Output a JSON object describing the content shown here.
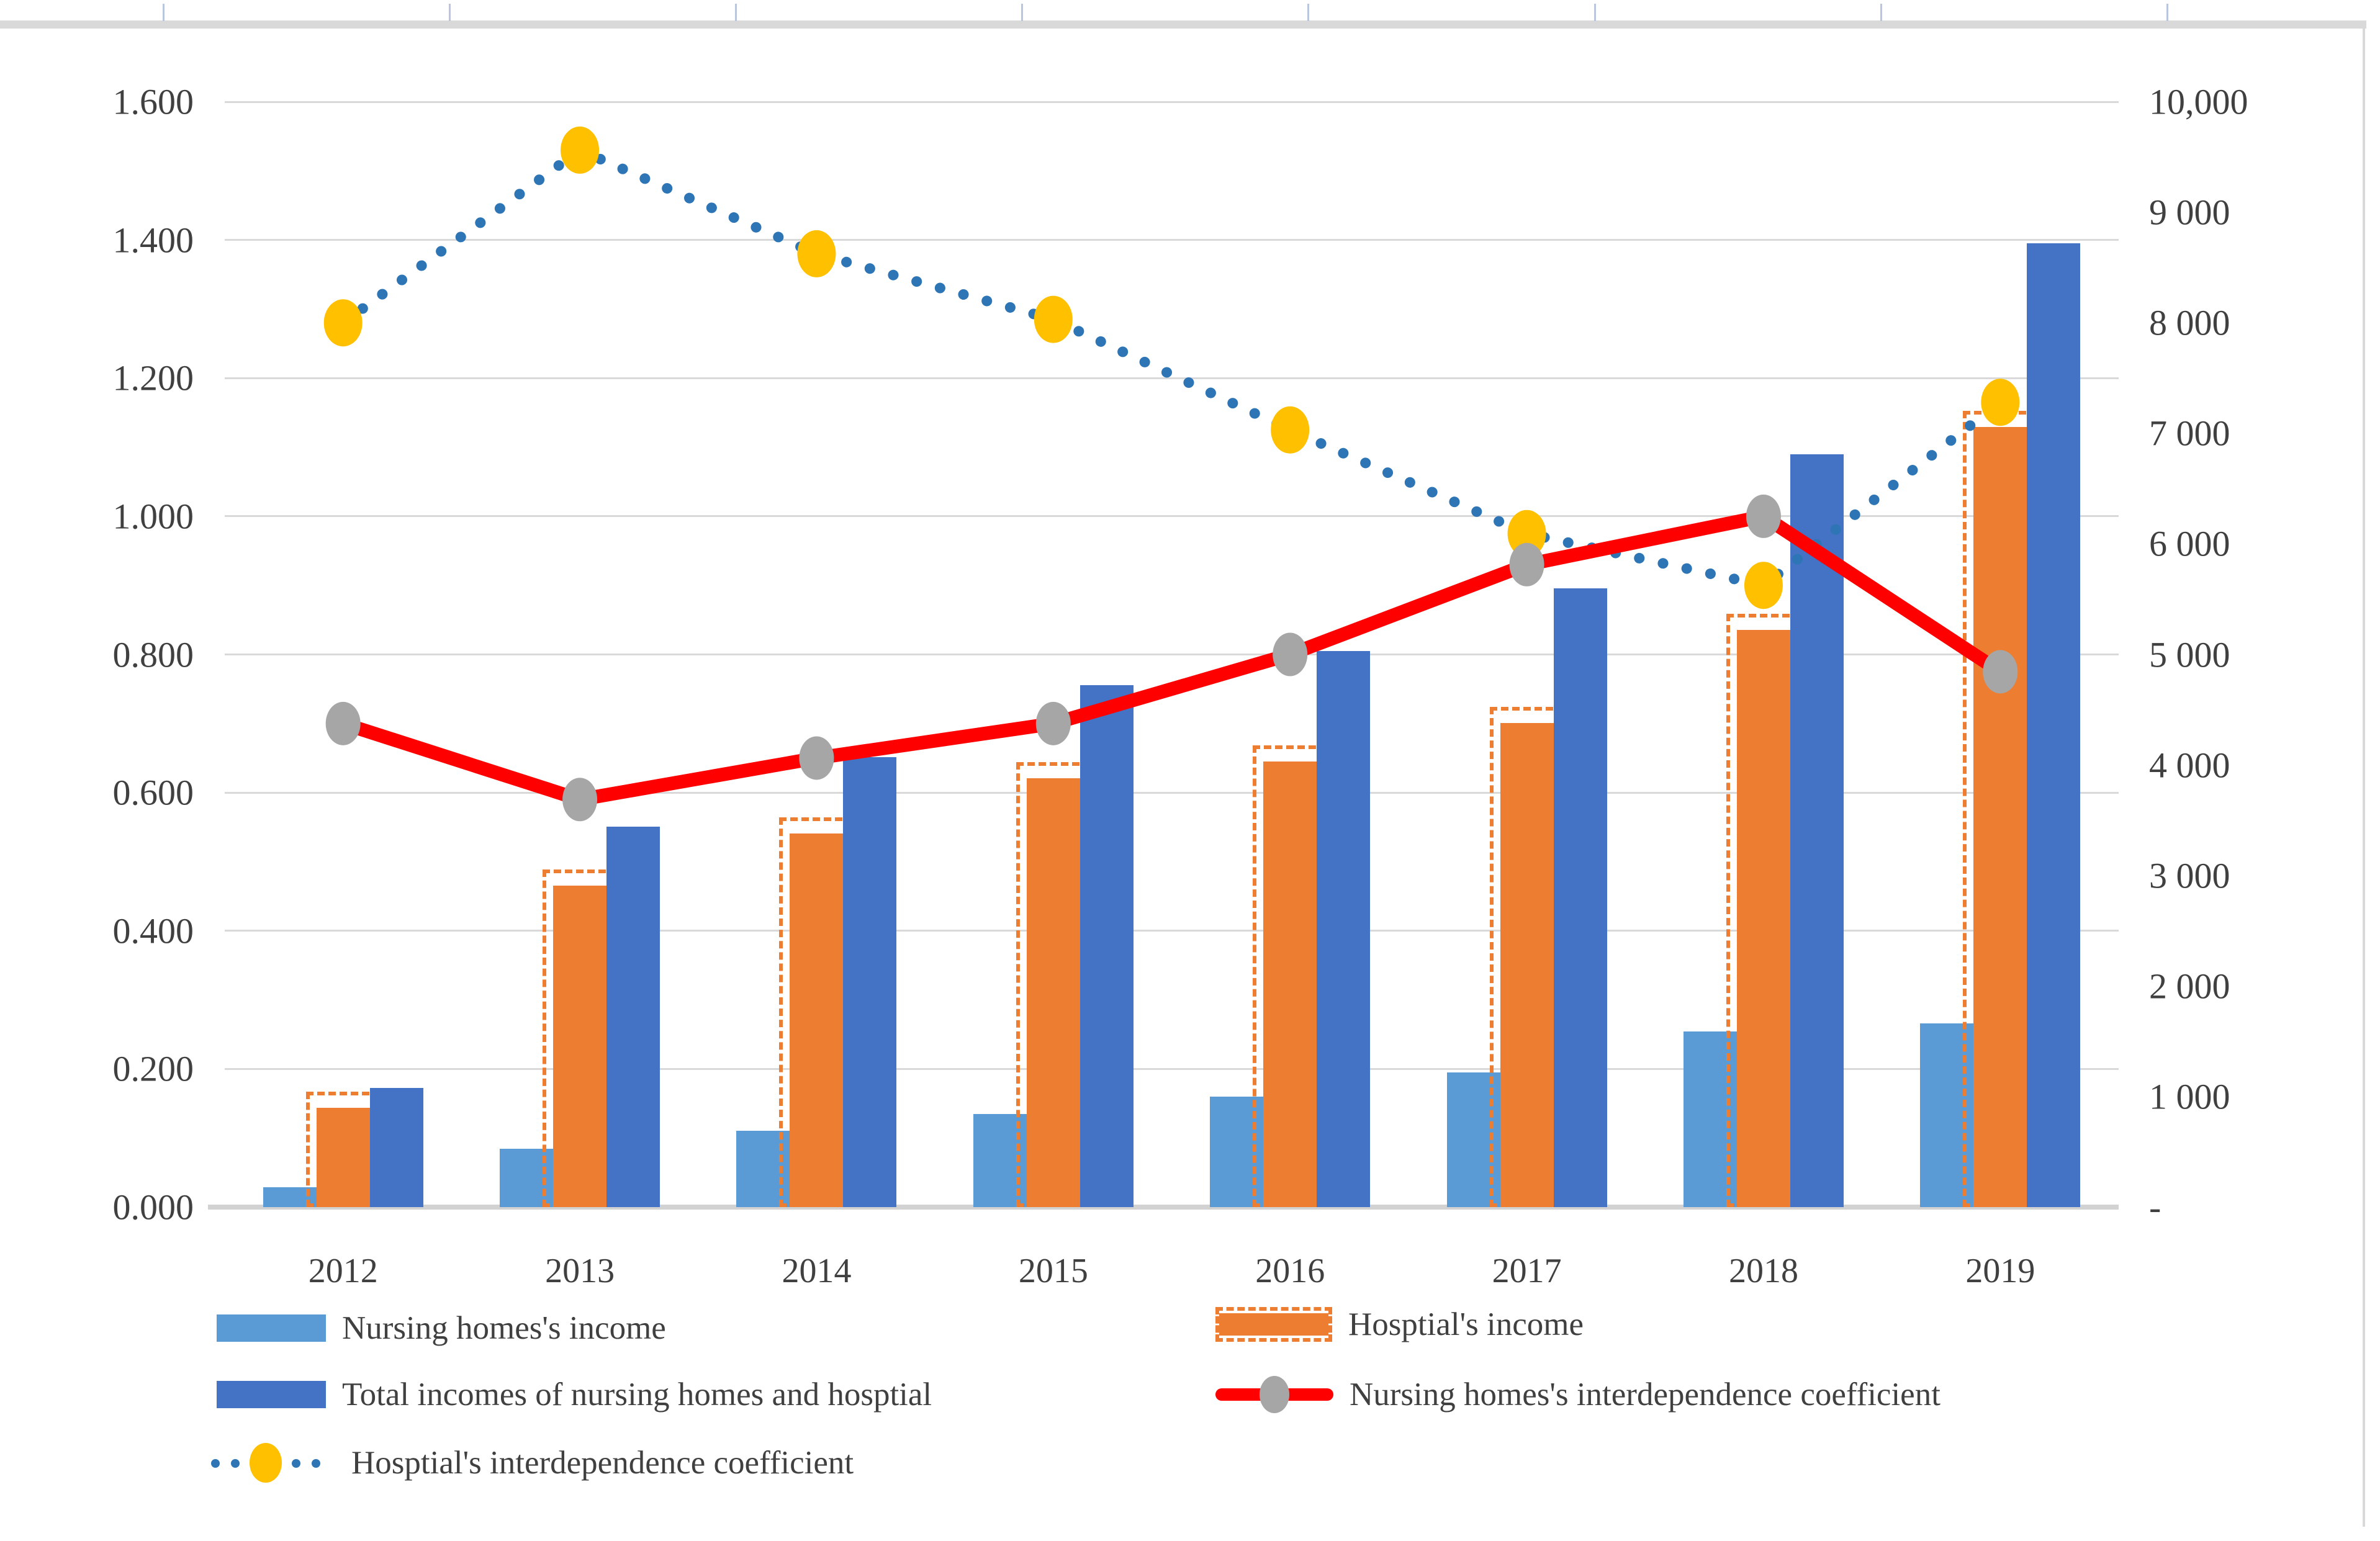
{
  "chart_data": {
    "type": "bar",
    "subtype": "combo-bar-line-dual-axis",
    "title": "",
    "xlabel": "",
    "ylabel": "",
    "categories": [
      "2012",
      "2013",
      "2014",
      "2015",
      "2016",
      "2017",
      "2018",
      "2019"
    ],
    "series": [
      {
        "name": "Nursing homes's income",
        "type": "bar",
        "axis": "right",
        "color": "#5B9BD5",
        "values": [
          180,
          530,
          690,
          840,
          1000,
          1220,
          1590,
          1660
        ]
      },
      {
        "name": "Hosptial's income",
        "type": "bar",
        "axis": "right",
        "color": "#ED7D31",
        "outline": "dashed",
        "values": [
          900,
          2910,
          3380,
          3880,
          4030,
          4380,
          5220,
          7060
        ]
      },
      {
        "name": "Total incomes of nursing homes and hosptial",
        "type": "bar",
        "axis": "right",
        "color": "#4472C4",
        "values": [
          1080,
          3440,
          4070,
          4720,
          5030,
          5600,
          6810,
          8720
        ]
      },
      {
        "name": "Nursing homes's interdependence coefficient",
        "type": "line",
        "axis": "left",
        "color": "#FF0000",
        "marker": "ellipse",
        "marker_color": "#A6A6A6",
        "values": [
          0.7,
          0.59,
          0.65,
          0.7,
          0.8,
          0.93,
          1.0,
          0.775
        ]
      },
      {
        "name": "Hosptial's interdependence coefficient",
        "type": "line",
        "line_style": "dotted",
        "axis": "left",
        "color": "#2E75B6",
        "marker": "ellipse",
        "marker_color": "#FFC000",
        "values": [
          1.28,
          1.53,
          1.38,
          1.285,
          1.125,
          0.975,
          0.9,
          1.165
        ]
      }
    ],
    "left_axis": {
      "min": 0,
      "max": 1.6,
      "step": 0.2,
      "tick_labels": [
        "1.600",
        "1.400",
        "1.200",
        "1.000",
        "0.800",
        "0.600",
        "0.400",
        "0.200",
        "0.000"
      ]
    },
    "right_axis": {
      "min": 0,
      "max": 10000,
      "step": 1000,
      "tick_labels": [
        "10,000",
        "9 000",
        "8 000",
        "7 000",
        "6 000",
        "5 000",
        "4 000",
        "3 000",
        "2 000",
        "1 000",
        "-"
      ]
    },
    "grid": true,
    "legend_position": "bottom",
    "colors": {
      "grid": "#D9D9D9",
      "axis_text": "#404040",
      "top_band": "#D9D9D9",
      "top_ticks": "#B9C6DD",
      "nursing_bar": "#5B9BD5",
      "hospital_bar": "#ED7D31",
      "total_bar": "#4472C4",
      "red_line": "#FF0000",
      "gray_marker": "#A6A6A6",
      "dotted_line": "#2E75B6",
      "yellow_marker": "#FFC000",
      "background": "#FFFFFF"
    }
  }
}
